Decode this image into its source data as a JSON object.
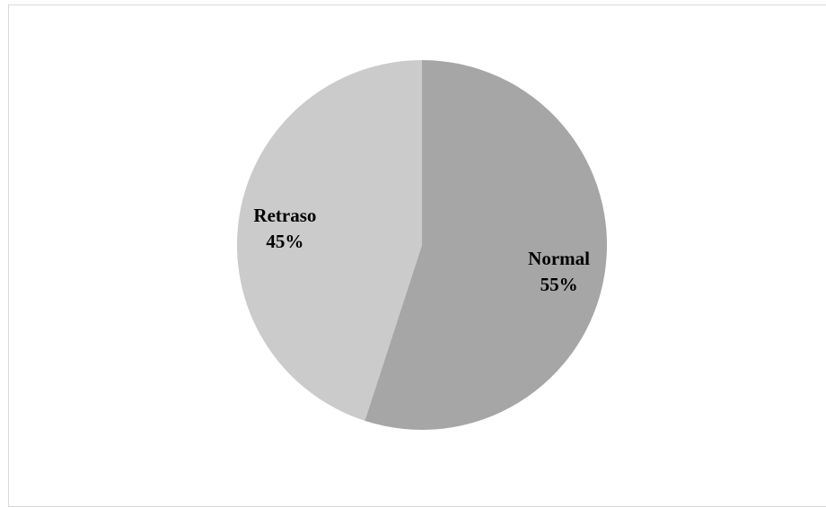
{
  "chart_data": {
    "type": "pie",
    "title": "",
    "slices": [
      {
        "label": "Normal",
        "value": 55,
        "value_label": "55%",
        "color": "#a6a6a6"
      },
      {
        "label": "Retraso",
        "value": 45,
        "value_label": "45%",
        "color": "#cbcbcb"
      }
    ],
    "start_angle_deg": 0,
    "direction": "clockwise",
    "legend": "none",
    "border_color": "#d9d9d9"
  }
}
